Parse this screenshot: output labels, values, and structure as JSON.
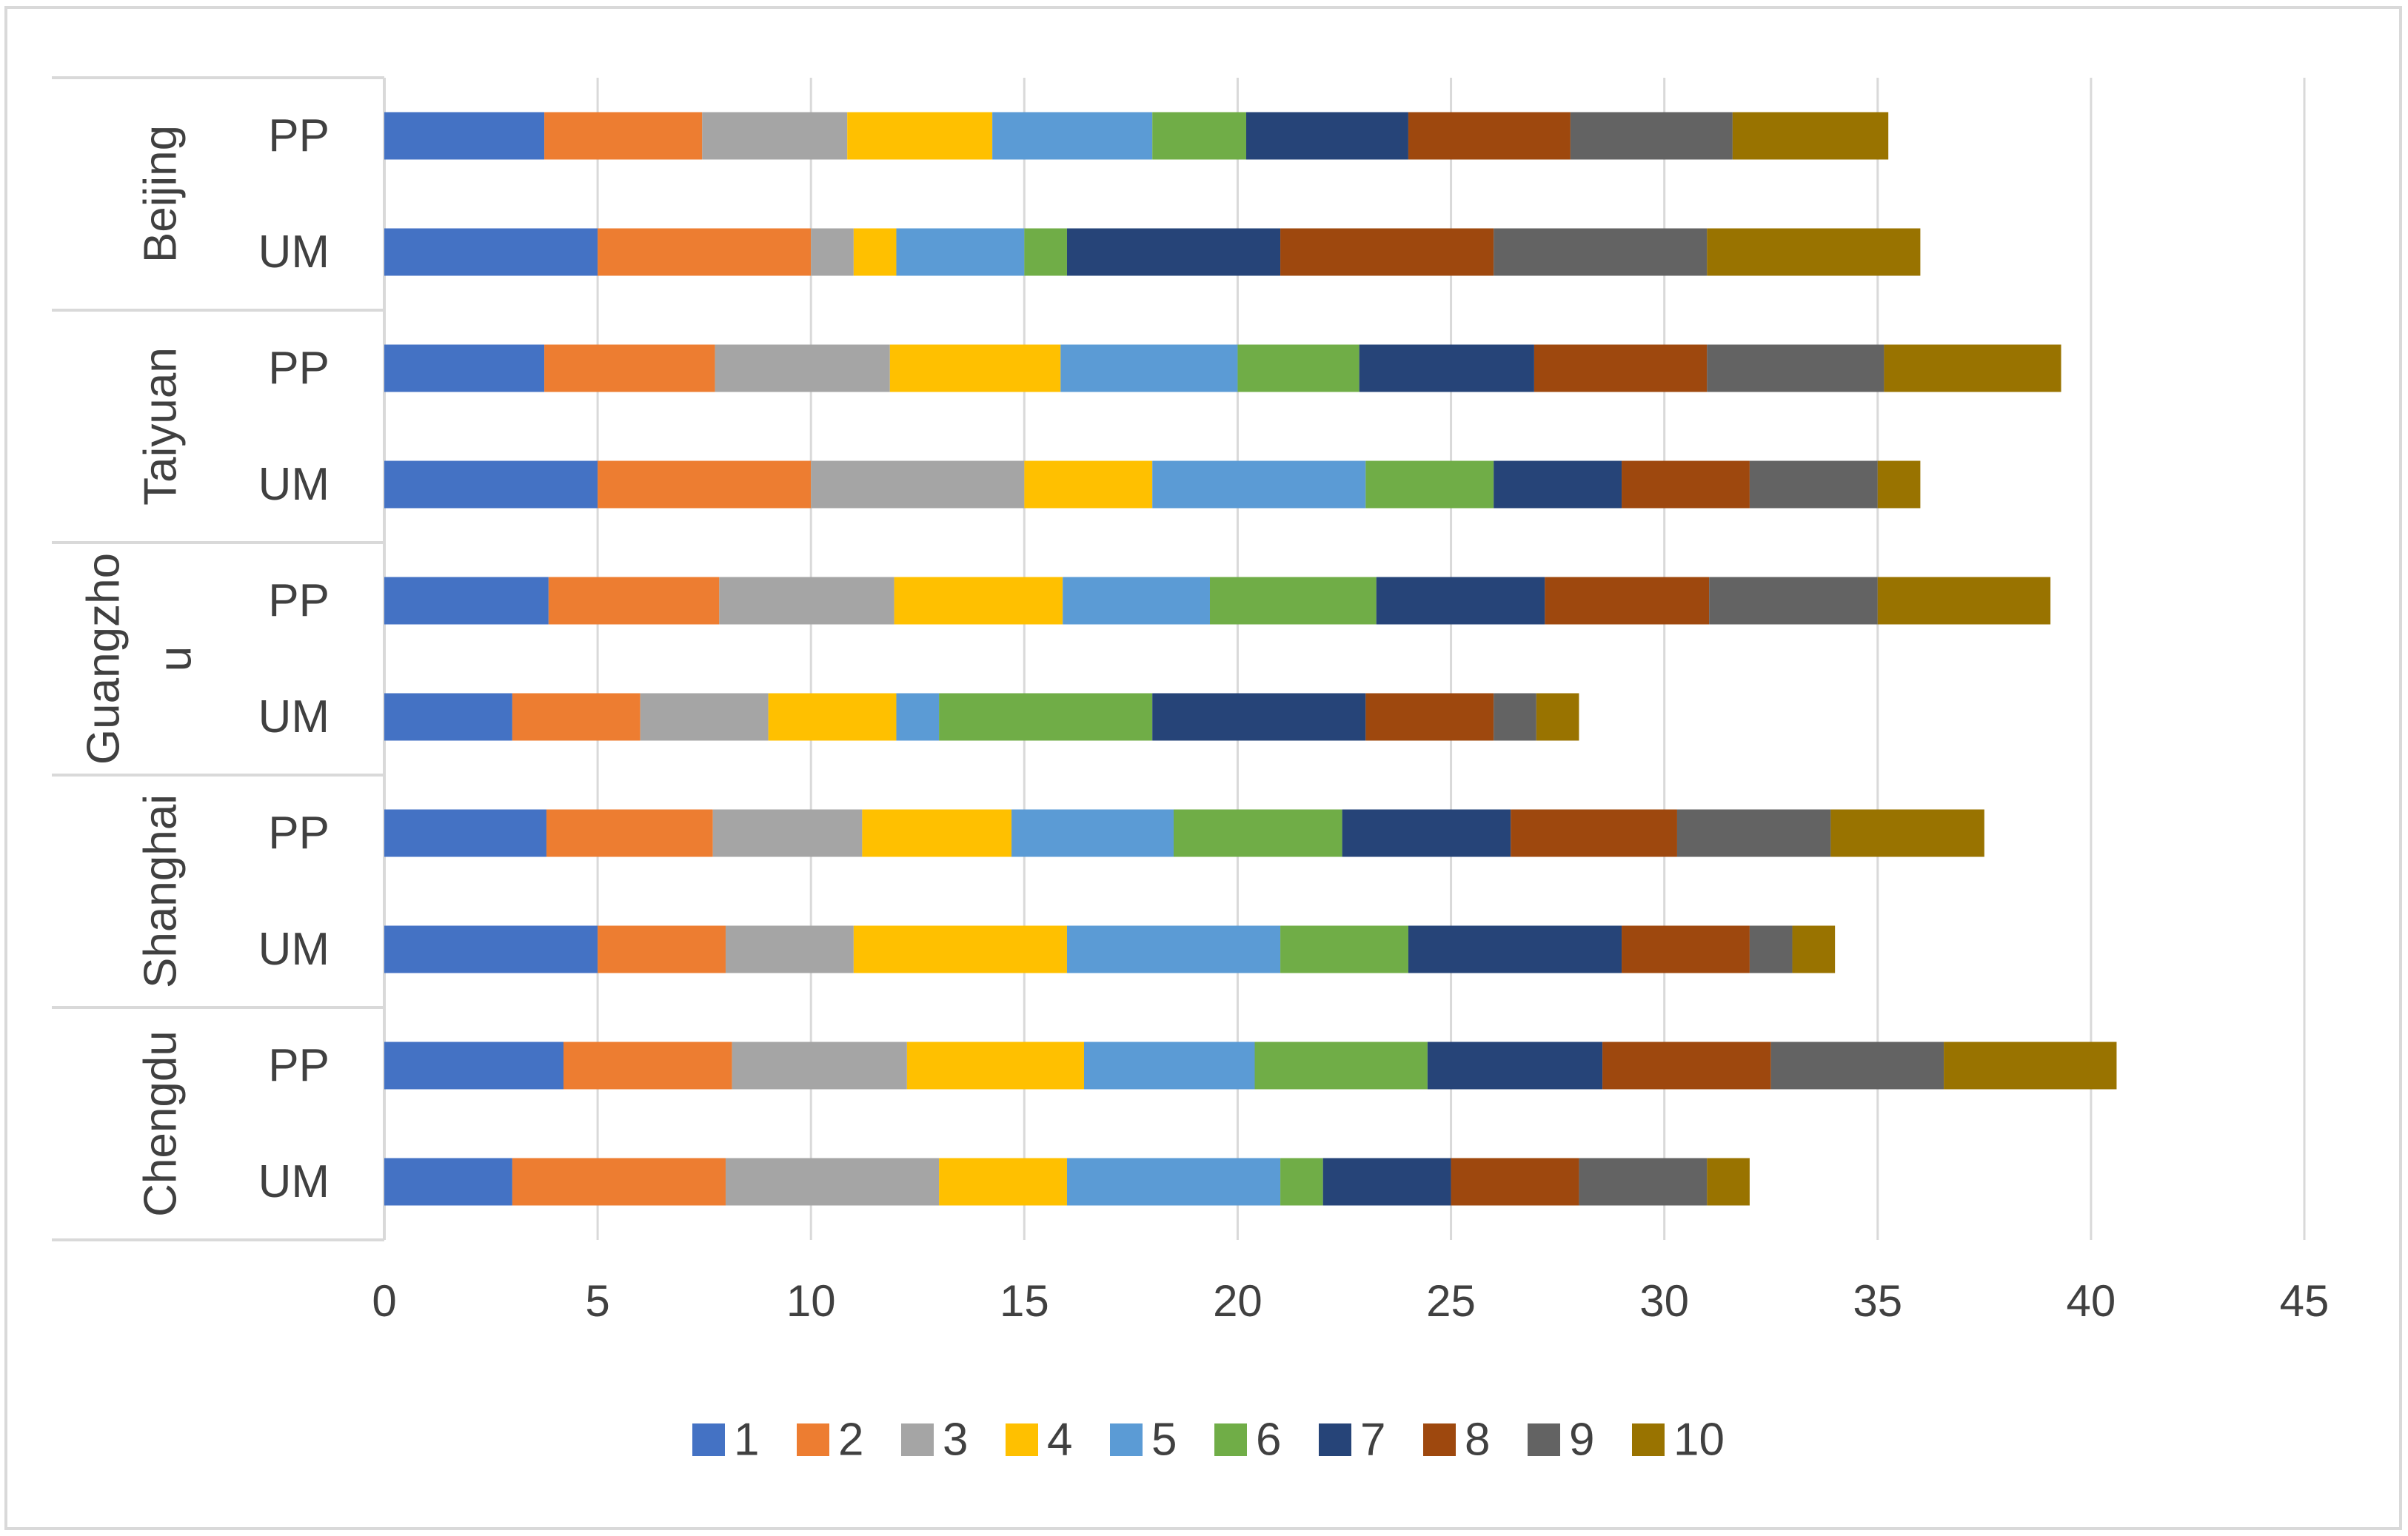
{
  "chart_data": {
    "type": "bar",
    "orientation": "horizontal",
    "stacked": true,
    "title": "",
    "xlabel": "",
    "ylabel": "",
    "xlim": [
      0,
      45
    ],
    "x_ticks": [
      0,
      5,
      10,
      15,
      20,
      25,
      30,
      35,
      40,
      45
    ],
    "grid": true,
    "legend_position": "bottom",
    "groups": [
      {
        "name": "Beijing",
        "label_lines": [
          "Beijing"
        ],
        "categories": [
          "PP",
          "UM"
        ]
      },
      {
        "name": "Taiyuan",
        "label_lines": [
          "Taiyuan"
        ],
        "categories": [
          "PP",
          "UM"
        ]
      },
      {
        "name": "Guangzhou",
        "label_lines": [
          "Guangzho",
          "u"
        ],
        "categories": [
          "PP",
          "UM"
        ]
      },
      {
        "name": "Shanghai",
        "label_lines": [
          "Shanghai"
        ],
        "categories": [
          "PP",
          "UM"
        ]
      },
      {
        "name": "Chengdu",
        "label_lines": [
          "Chengdu"
        ],
        "categories": [
          "PP",
          "UM"
        ]
      }
    ],
    "rows": [
      "Beijing PP",
      "Beijing UM",
      "Taiyuan PP",
      "Taiyuan UM",
      "Guangzhou PP",
      "Guangzhou UM",
      "Shanghai PP",
      "Shanghai UM",
      "Chengdu PP",
      "Chengdu UM"
    ],
    "series": [
      {
        "name": "1",
        "color": "#4472C4",
        "values": [
          3.75,
          5,
          3.75,
          5,
          3.85,
          3,
          3.8,
          5,
          4.2,
          3
        ]
      },
      {
        "name": "2",
        "color": "#ED7D31",
        "values": [
          3.7,
          5,
          4,
          5,
          4,
          3,
          3.9,
          3,
          3.95,
          5
        ]
      },
      {
        "name": "3",
        "color": "#A5A5A5",
        "values": [
          3.4,
          1,
          4.1,
          5,
          4.1,
          3,
          3.5,
          3,
          4.1,
          5
        ]
      },
      {
        "name": "4",
        "color": "#FFC000",
        "values": [
          3.4,
          1,
          4,
          3,
          3.95,
          3,
          3.5,
          5,
          4.15,
          3
        ]
      },
      {
        "name": "5",
        "color": "#5B9BD5",
        "values": [
          3.75,
          3,
          4.15,
          5,
          3.45,
          1,
          3.8,
          5,
          4,
          5
        ]
      },
      {
        "name": "6",
        "color": "#70AD47",
        "values": [
          2.2,
          1,
          2.85,
          3,
          3.9,
          5,
          3.95,
          3,
          4.05,
          1
        ]
      },
      {
        "name": "7",
        "color": "#264478",
        "values": [
          3.8,
          5,
          4.1,
          3,
          3.95,
          5,
          3.95,
          5,
          4.1,
          3
        ]
      },
      {
        "name": "8",
        "color": "#9E480E",
        "values": [
          3.8,
          5,
          4.05,
          3,
          3.85,
          3,
          3.9,
          3,
          3.95,
          3
        ]
      },
      {
        "name": "9",
        "color": "#636363",
        "values": [
          3.8,
          5,
          4.15,
          3,
          3.95,
          1,
          3.6,
          1,
          4.05,
          3
        ]
      },
      {
        "name": "10",
        "color": "#997300",
        "values": [
          3.65,
          5,
          4.15,
          1,
          4.05,
          1,
          3.6,
          1,
          4.05,
          1
        ]
      }
    ]
  }
}
